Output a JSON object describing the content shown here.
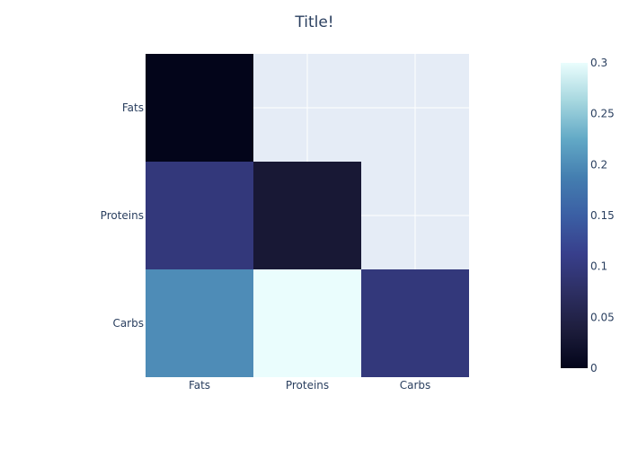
{
  "chart_data": {
    "type": "heatmap",
    "title": "Title!",
    "x_categories": [
      "Fats",
      "Proteins",
      "Carbs"
    ],
    "y_categories": [
      "Fats",
      "Proteins",
      "Carbs"
    ],
    "z": [
      [
        0.0,
        null,
        null
      ],
      [
        0.097,
        0.03,
        null
      ],
      [
        0.2,
        0.3,
        0.097
      ]
    ],
    "zmin": 0,
    "zmax": 0.3,
    "colorbar": {
      "ticks": [
        0,
        0.05,
        0.1,
        0.15,
        0.2,
        0.25,
        0.3
      ],
      "tick_labels": [
        "0",
        "0.05",
        "0.1",
        "0.15",
        "0.2",
        "0.25",
        "0.3"
      ]
    },
    "colorscale": "ice",
    "colorscale_stops": [
      [
        0.0,
        "#03051a"
      ],
      [
        0.125,
        "#1d1d3c"
      ],
      [
        0.25,
        "#2d2f63"
      ],
      [
        0.375,
        "#383f8c"
      ],
      [
        0.5,
        "#3b5fa4"
      ],
      [
        0.625,
        "#447eb0"
      ],
      [
        0.75,
        "#62a9c6"
      ],
      [
        0.875,
        "#a6d7df"
      ],
      [
        1.0,
        "#eafdfd"
      ]
    ],
    "plot_background": "#e5ecf6",
    "grid_color": "#ffffff",
    "text_color": "#2a3f5f",
    "grid": true
  }
}
